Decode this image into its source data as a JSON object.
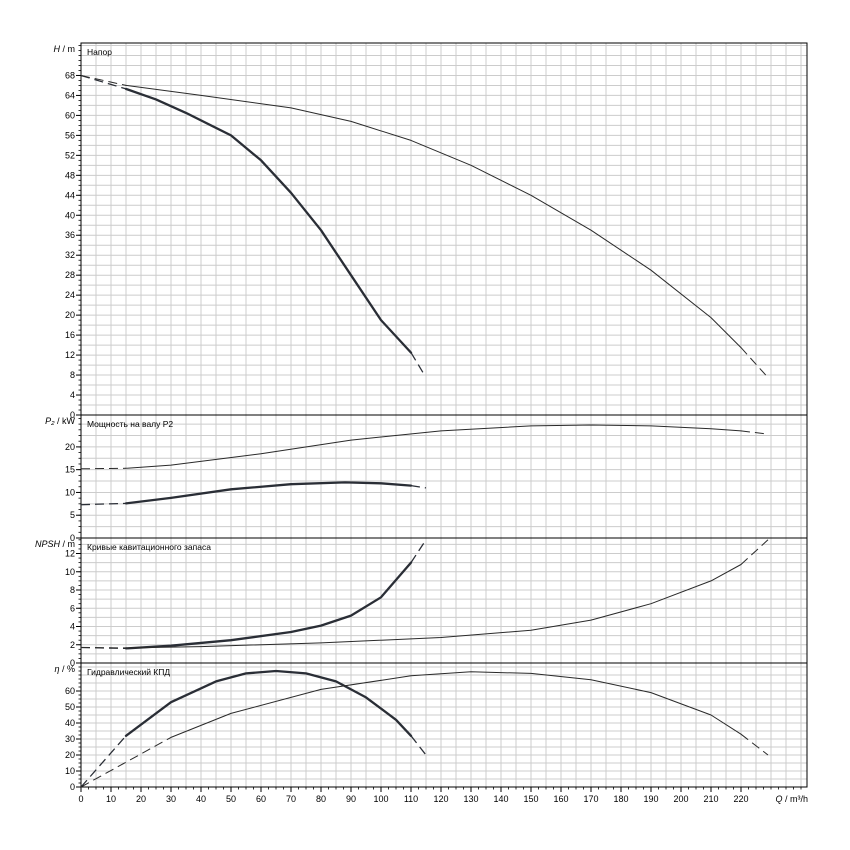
{
  "chart_data": {
    "type": "line",
    "x": {
      "label_name": "Q",
      "label_unit": "m³/h",
      "range": [
        0,
        242
      ],
      "ticks": [
        0,
        10,
        20,
        30,
        40,
        50,
        60,
        70,
        80,
        90,
        100,
        110,
        120,
        130,
        140,
        150,
        160,
        170,
        180,
        190,
        200,
        210,
        220
      ],
      "grid_step": 5
    },
    "panels": [
      {
        "id": "head",
        "title": "Напор",
        "ylabel_name": "H",
        "ylabel_unit": "m",
        "ylim": [
          0,
          74.5
        ],
        "yticks": [
          0,
          4,
          8,
          12,
          16,
          20,
          24,
          28,
          32,
          36,
          40,
          44,
          48,
          52,
          56,
          60,
          64,
          68
        ],
        "grid_step": 2,
        "series": [
          {
            "style": "thick",
            "dashed_start": [
              [
                0,
                68
              ],
              [
                15,
                65.3
              ]
            ],
            "solid": [
              [
                15,
                65.3
              ],
              [
                25,
                63.2
              ],
              [
                35,
                60.5
              ],
              [
                50,
                56
              ],
              [
                60,
                51
              ],
              [
                70,
                44.5
              ],
              [
                80,
                37
              ],
              [
                90,
                28
              ],
              [
                100,
                19
              ],
              [
                110,
                12.5
              ]
            ],
            "dashed_end": [
              [
                110,
                12.5
              ],
              [
                114,
                8.5
              ]
            ]
          },
          {
            "style": "thin",
            "dashed_start": [
              [
                0,
                68
              ],
              [
                15,
                66
              ]
            ],
            "solid": [
              [
                15,
                66
              ],
              [
                40,
                64
              ],
              [
                70,
                61.5
              ],
              [
                90,
                58.8
              ],
              [
                110,
                55
              ],
              [
                130,
                50
              ],
              [
                150,
                44
              ],
              [
                170,
                37
              ],
              [
                190,
                29
              ],
              [
                210,
                19.5
              ],
              [
                220,
                13.5
              ]
            ],
            "dashed_end": [
              [
                220,
                13.5
              ],
              [
                229,
                7.5
              ]
            ]
          }
        ]
      },
      {
        "id": "power",
        "title": "Мощность на валу P2",
        "ylabel_name": "P₂",
        "ylabel_unit": "kW",
        "ylim": [
          0,
          27
        ],
        "yticks": [
          0,
          5,
          10,
          15,
          20
        ],
        "grid_step": 2.5,
        "series": [
          {
            "style": "thick",
            "dashed_start": [
              [
                0,
                7.3
              ],
              [
                15,
                7.6
              ]
            ],
            "solid": [
              [
                15,
                7.6
              ],
              [
                30,
                8.8
              ],
              [
                50,
                10.7
              ],
              [
                70,
                11.8
              ],
              [
                88,
                12.2
              ],
              [
                100,
                12
              ],
              [
                110,
                11.5
              ]
            ],
            "dashed_end": [
              [
                110,
                11.5
              ],
              [
                115,
                11
              ]
            ]
          },
          {
            "style": "thin",
            "dashed_start": [
              [
                0,
                15.2
              ],
              [
                15,
                15.3
              ]
            ],
            "solid": [
              [
                15,
                15.3
              ],
              [
                30,
                16
              ],
              [
                60,
                18.5
              ],
              [
                90,
                21.5
              ],
              [
                120,
                23.5
              ],
              [
                150,
                24.6
              ],
              [
                170,
                24.8
              ],
              [
                190,
                24.6
              ],
              [
                210,
                24
              ],
              [
                220,
                23.5
              ]
            ],
            "dashed_end": [
              [
                220,
                23.5
              ],
              [
                229,
                22.8
              ]
            ]
          }
        ]
      },
      {
        "id": "npsh",
        "title": "Кривые кавитационного запаса",
        "ylabel_name": "NPSH",
        "ylabel_unit": "m",
        "ylim": [
          0,
          13.7
        ],
        "yticks": [
          0,
          2,
          4,
          6,
          8,
          10,
          12
        ],
        "grid_step": 1,
        "series": [
          {
            "style": "thick",
            "dashed_start": [
              [
                0,
                1.7
              ],
              [
                15,
                1.6
              ]
            ],
            "solid": [
              [
                15,
                1.6
              ],
              [
                30,
                1.9
              ],
              [
                50,
                2.5
              ],
              [
                70,
                3.4
              ],
              [
                80,
                4.1
              ],
              [
                90,
                5.2
              ],
              [
                100,
                7.2
              ],
              [
                110,
                11
              ]
            ],
            "dashed_end": [
              [
                110,
                11
              ],
              [
                115,
                13.5
              ]
            ]
          },
          {
            "style": "thin",
            "dashed_start": [
              [
                0,
                1.7
              ],
              [
                15,
                1.65
              ]
            ],
            "solid": [
              [
                15,
                1.65
              ],
              [
                40,
                1.8
              ],
              [
                80,
                2.2
              ],
              [
                120,
                2.8
              ],
              [
                150,
                3.6
              ],
              [
                170,
                4.7
              ],
              [
                190,
                6.5
              ],
              [
                210,
                9
              ],
              [
                220,
                10.8
              ]
            ],
            "dashed_end": [
              [
                220,
                10.8
              ],
              [
                229,
                13.5
              ]
            ]
          }
        ]
      },
      {
        "id": "efficiency",
        "title": "Гидравлический КПД",
        "ylabel_name": "η",
        "ylabel_unit": "%",
        "ylim": [
          0,
          77.5
        ],
        "yticks": [
          0,
          10,
          20,
          30,
          40,
          50,
          60
        ],
        "grid_step": 5,
        "series": [
          {
            "style": "thick",
            "dashed_start": [
              [
                0,
                0
              ],
              [
                15,
                32
              ]
            ],
            "solid": [
              [
                15,
                32
              ],
              [
                30,
                53
              ],
              [
                45,
                66
              ],
              [
                55,
                71
              ],
              [
                65,
                72.5
              ],
              [
                75,
                71
              ],
              [
                85,
                66
              ],
              [
                95,
                56
              ],
              [
                105,
                42
              ],
              [
                110,
                32
              ]
            ],
            "dashed_end": [
              [
                110,
                32
              ],
              [
                115,
                20
              ]
            ]
          },
          {
            "style": "thin",
            "dashed_start": [
              [
                0,
                0
              ],
              [
                30,
                31
              ]
            ],
            "solid": [
              [
                30,
                31
              ],
              [
                50,
                46
              ],
              [
                80,
                61
              ],
              [
                110,
                69.5
              ],
              [
                130,
                72
              ],
              [
                150,
                71
              ],
              [
                170,
                67
              ],
              [
                190,
                59
              ],
              [
                210,
                45
              ],
              [
                220,
                33
              ]
            ],
            "dashed_end": [
              [
                220,
                33
              ],
              [
                229,
                20
              ]
            ]
          }
        ]
      }
    ]
  }
}
